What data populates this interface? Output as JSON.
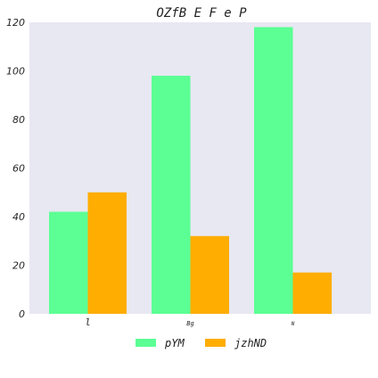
{
  "chart_data": {
    "type": "bar",
    "title": "OZfB E F e P",
    "xlabel": "",
    "ylabel": "",
    "categories": [
      "l",
      "Bg",
      "N"
    ],
    "category_tick_font_sizes": [
      11,
      7,
      6
    ],
    "series": [
      {
        "name": "pYM",
        "values": [
          42,
          98,
          118
        ],
        "color": "#5cff94"
      },
      {
        "name": "jzhND",
        "values": [
          50,
          32,
          17
        ],
        "color": "#ffad00"
      }
    ],
    "ylim": [
      0,
      120
    ],
    "yticks": [
      0,
      20,
      40,
      60,
      80,
      100,
      120
    ],
    "grid": false,
    "legend_position": "bottom-center",
    "plot_background": "#e8e8f2"
  }
}
